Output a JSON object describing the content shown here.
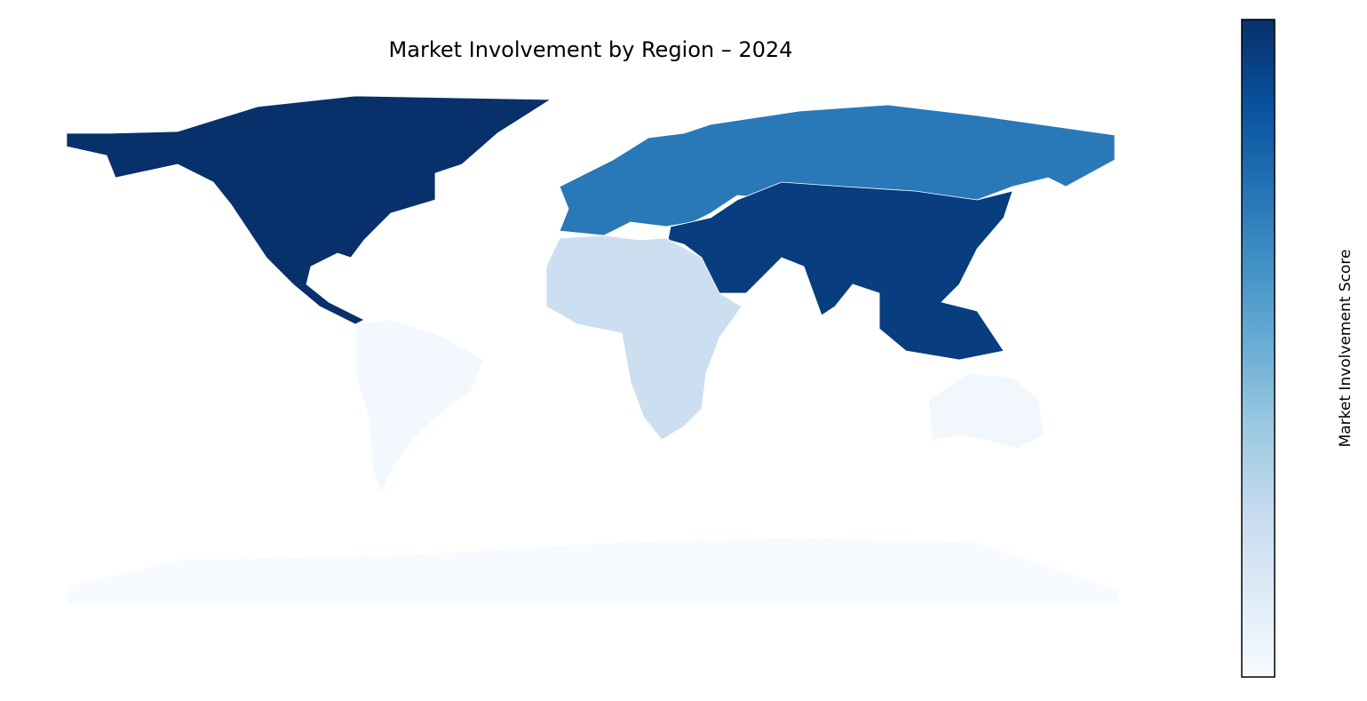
{
  "chart_data": {
    "type": "choropleth",
    "title": "Market Involvement by Region – 2024",
    "colorbar_label": "Market Involvement Score",
    "categories": [
      null,
      null,
      null,
      null,
      null,
      null,
      null
    ],
    "values": [
      1.0,
      0.72,
      0.95,
      0.22,
      0.02,
      0.03,
      0.0
    ],
    "clim": [
      0,
      1
    ],
    "colormap": [
      "#f7fbff",
      "#deebf7",
      "#c6dbef",
      "#9ecae1",
      "#6baed6",
      "#4292c6",
      "#2171b5",
      "#08519c",
      "#08306b"
    ],
    "border_color": "#ffffff"
  }
}
